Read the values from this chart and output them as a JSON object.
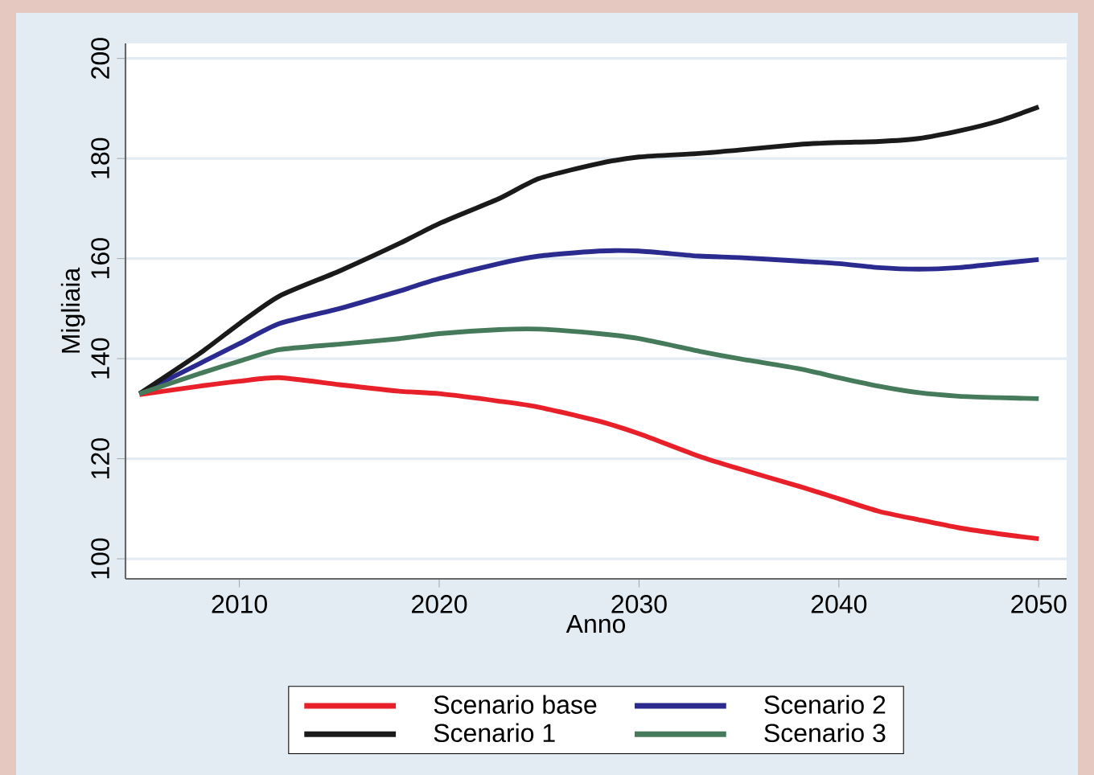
{
  "chart_data": {
    "type": "line",
    "xlabel": "Anno",
    "ylabel": "Migliaia",
    "x": [
      2005,
      2008,
      2010,
      2012,
      2015,
      2018,
      2020,
      2023,
      2025,
      2028,
      2030,
      2033,
      2035,
      2038,
      2040,
      2042,
      2044,
      2046,
      2048,
      2050
    ],
    "series": [
      {
        "name": "Scenario base",
        "color": "#e8202a",
        "values": [
          132.8,
          134.5,
          135.5,
          136.2,
          134.8,
          133.5,
          133,
          131.5,
          130.3,
          127.5,
          125,
          120.5,
          118,
          114.5,
          112,
          109.5,
          107.8,
          106.2,
          105,
          104
        ]
      },
      {
        "name": "Scenario 1",
        "color": "#1a1a1a",
        "values": [
          133,
          141,
          147,
          152.5,
          157.5,
          163,
          167,
          172,
          176,
          179,
          180.3,
          181,
          181.7,
          182.8,
          183.2,
          183.4,
          184,
          185.5,
          187.5,
          190.3
        ]
      },
      {
        "name": "Scenario 2",
        "color": "#2a2a8f",
        "values": [
          133,
          139,
          143,
          147,
          150,
          153.5,
          156,
          159,
          160.5,
          161.5,
          161.5,
          160.5,
          160.2,
          159.5,
          159,
          158.2,
          157.9,
          158.2,
          159,
          159.8
        ]
      },
      {
        "name": "Scenario 3",
        "color": "#457a5a",
        "values": [
          133,
          137,
          139.5,
          141.8,
          142.9,
          144,
          145,
          145.8,
          145.9,
          145,
          144,
          141.5,
          140,
          138,
          136.2,
          134.5,
          133.2,
          132.5,
          132.2,
          132
        ]
      }
    ],
    "xlim": [
      2004.3,
      2051.4
    ],
    "ylim": [
      96,
      203
    ],
    "xticks": [
      2010,
      2020,
      2030,
      2040,
      2050
    ],
    "yticks": [
      100,
      120,
      140,
      160,
      180,
      200
    ],
    "grid": "y",
    "legend": "bottom"
  }
}
